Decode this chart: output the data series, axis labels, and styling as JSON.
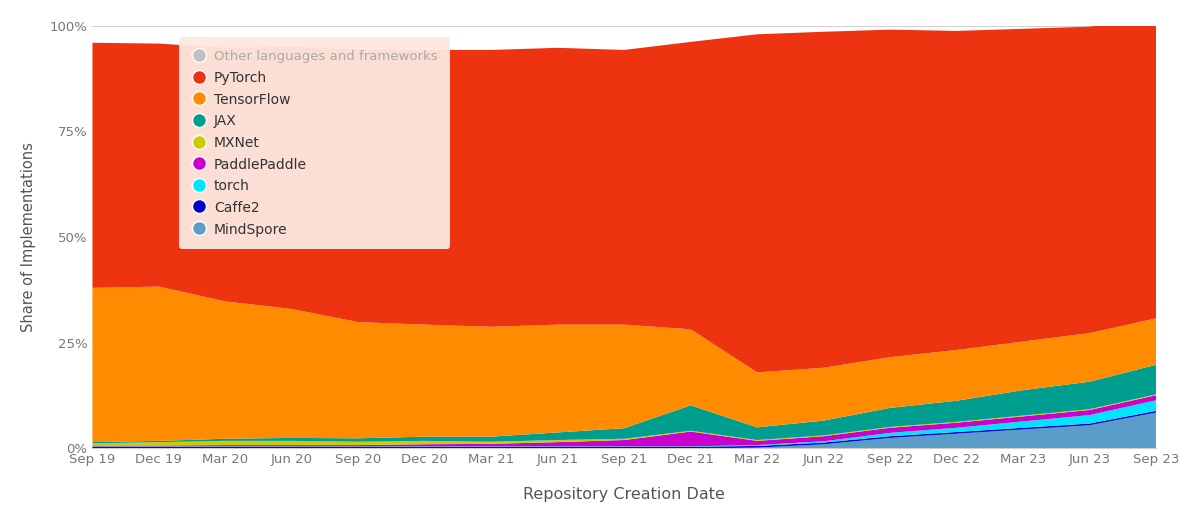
{
  "title": "",
  "xlabel": "Repository Creation Date",
  "ylabel": "Share of Implementations",
  "x_labels": [
    "Sep 19",
    "Dec 19",
    "Mar 20",
    "Jun 20",
    "Sep 20",
    "Dec 20",
    "Mar 21",
    "Jun 21",
    "Sep 21",
    "Dec 21",
    "Mar 22",
    "Jun 22",
    "Sep 22",
    "Dec 22",
    "Mar 23",
    "Jun 23",
    "Sep 23"
  ],
  "yticks": [
    0,
    25,
    50,
    75,
    100
  ],
  "ytick_labels": [
    "0%",
    "25%",
    "50%",
    "75%",
    "100%"
  ],
  "series": {
    "Other": {
      "color": "#c8c8c8",
      "values": [
        0.0,
        0.0,
        0.0,
        0.0,
        0.0,
        0.0,
        0.0,
        0.0,
        0.0,
        0.0,
        0.0,
        0.0,
        0.0,
        0.0,
        0.0,
        0.0,
        0.0
      ]
    },
    "PyTorch": {
      "color": "#ee3311",
      "values": [
        58.0,
        57.5,
        60.0,
        62.0,
        64.5,
        65.0,
        65.5,
        65.5,
        65.0,
        68.0,
        80.0,
        79.5,
        77.5,
        75.5,
        74.0,
        72.5,
        71.0
      ]
    },
    "TensorFlow": {
      "color": "#ff8c00",
      "values": [
        36.5,
        36.5,
        32.5,
        30.5,
        27.5,
        26.5,
        26.0,
        25.5,
        24.5,
        18.0,
        13.0,
        12.5,
        12.0,
        12.0,
        11.5,
        11.5,
        11.0
      ]
    },
    "JAX": {
      "color": "#009e8e",
      "values": [
        0.3,
        0.3,
        0.5,
        0.7,
        0.8,
        1.0,
        1.2,
        1.8,
        2.5,
        6.0,
        3.0,
        3.5,
        4.5,
        5.0,
        6.0,
        6.5,
        7.0
      ]
    },
    "MXNet": {
      "color": "#cccc00",
      "values": [
        0.5,
        0.8,
        1.0,
        1.0,
        0.8,
        0.8,
        0.5,
        0.5,
        0.3,
        0.2,
        0.2,
        0.2,
        0.2,
        0.2,
        0.2,
        0.2,
        0.2
      ]
    },
    "PaddlePaddle": {
      "color": "#cc00cc",
      "values": [
        0.2,
        0.2,
        0.3,
        0.3,
        0.3,
        0.5,
        0.6,
        1.0,
        1.5,
        3.5,
        1.0,
        1.2,
        1.2,
        1.2,
        1.2,
        1.2,
        1.2
      ]
    },
    "torch": {
      "color": "#00e5ff",
      "values": [
        0.1,
        0.1,
        0.1,
        0.1,
        0.1,
        0.1,
        0.1,
        0.1,
        0.1,
        0.1,
        0.2,
        0.3,
        0.8,
        1.0,
        1.5,
        2.0,
        2.5
      ]
    },
    "Caffe2": {
      "color": "#0000cc",
      "values": [
        0.4,
        0.4,
        0.4,
        0.4,
        0.4,
        0.4,
        0.4,
        0.4,
        0.4,
        0.4,
        0.4,
        0.4,
        0.4,
        0.4,
        0.4,
        0.4,
        0.4
      ]
    },
    "MindSpore": {
      "color": "#5b9dc9",
      "values": [
        0.0,
        0.0,
        0.0,
        0.0,
        0.0,
        0.0,
        0.0,
        0.0,
        0.0,
        0.0,
        0.2,
        1.0,
        2.5,
        3.5,
        4.5,
        5.5,
        8.5
      ]
    }
  },
  "stack_order": [
    "MindSpore",
    "Caffe2",
    "torch",
    "PaddlePaddle",
    "MXNet",
    "JAX",
    "TensorFlow",
    "PyTorch",
    "Other"
  ],
  "legend_order": [
    "Other",
    "PyTorch",
    "TensorFlow",
    "JAX",
    "MXNet",
    "PaddlePaddle",
    "torch",
    "Caffe2",
    "MindSpore"
  ],
  "legend_labels": [
    "Other languages and frameworks",
    "PyTorch",
    "TensorFlow",
    "JAX",
    "MXNet",
    "PaddlePaddle",
    "torch",
    "Caffe2",
    "MindSpore"
  ],
  "bg_color": "#ffffff",
  "plot_bg_color": "#ffffff",
  "legend_bg_color": "#fce8e0",
  "grid_color": "#d0d0d0",
  "axis_color": "#aaaaaa"
}
